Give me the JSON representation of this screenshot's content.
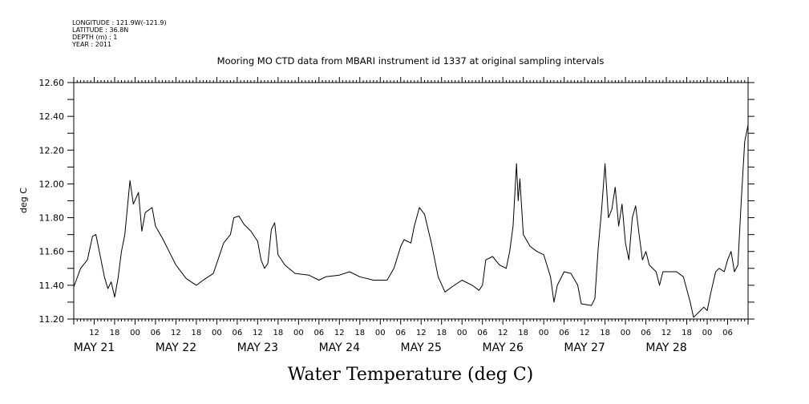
{
  "metadata": {
    "longitude": "LONGITUDE : 121.9W(-121.9)",
    "latitude": "LATITUDE : 36.8N",
    "depth": "DEPTH (m) : 1",
    "year": "YEAR : 2011"
  },
  "chart_data": {
    "type": "line",
    "title": "Mooring MO CTD data from MBARI instrument id 1337 at original sampling intervals",
    "xlabel": "Water Temperature (deg C)",
    "ylabel": "deg C",
    "ylim": [
      11.2,
      12.6
    ],
    "xlim": [
      "2011-05-20T06:00",
      "2011-05-28T12:00"
    ],
    "y_ticks": [
      "11.20",
      "11.40",
      "11.60",
      "11.80",
      "12.00",
      "12.20",
      "12.40",
      "12.60"
    ],
    "hour_ticks": [
      {
        "x": "2011-05-20T12:00",
        "label": "12"
      },
      {
        "x": "2011-05-20T18:00",
        "label": "18"
      },
      {
        "x": "2011-05-21T00:00",
        "label": "00"
      },
      {
        "x": "2011-05-21T06:00",
        "label": "06"
      },
      {
        "x": "2011-05-21T12:00",
        "label": "12"
      },
      {
        "x": "2011-05-21T18:00",
        "label": "18"
      },
      {
        "x": "2011-05-22T00:00",
        "label": "00"
      },
      {
        "x": "2011-05-22T06:00",
        "label": "06"
      },
      {
        "x": "2011-05-22T12:00",
        "label": "12"
      },
      {
        "x": "2011-05-22T18:00",
        "label": "18"
      },
      {
        "x": "2011-05-23T00:00",
        "label": "00"
      },
      {
        "x": "2011-05-23T06:00",
        "label": "06"
      },
      {
        "x": "2011-05-23T12:00",
        "label": "12"
      },
      {
        "x": "2011-05-23T18:00",
        "label": "18"
      },
      {
        "x": "2011-05-24T00:00",
        "label": "00"
      },
      {
        "x": "2011-05-24T06:00",
        "label": "06"
      },
      {
        "x": "2011-05-24T12:00",
        "label": "12"
      },
      {
        "x": "2011-05-24T18:00",
        "label": "18"
      },
      {
        "x": "2011-05-25T00:00",
        "label": "00"
      },
      {
        "x": "2011-05-25T06:00",
        "label": "06"
      },
      {
        "x": "2011-05-25T12:00",
        "label": "12"
      },
      {
        "x": "2011-05-25T18:00",
        "label": "18"
      },
      {
        "x": "2011-05-26T00:00",
        "label": "00"
      },
      {
        "x": "2011-05-26T06:00",
        "label": "06"
      },
      {
        "x": "2011-05-26T12:00",
        "label": "12"
      },
      {
        "x": "2011-05-26T18:00",
        "label": "18"
      },
      {
        "x": "2011-05-27T00:00",
        "label": "00"
      },
      {
        "x": "2011-05-27T06:00",
        "label": "06"
      },
      {
        "x": "2011-05-27T12:00",
        "label": "12"
      },
      {
        "x": "2011-05-27T18:00",
        "label": "18"
      },
      {
        "x": "2011-05-28T00:00",
        "label": "00"
      },
      {
        "x": "2011-05-28T06:00",
        "label": "06"
      }
    ],
    "day_labels": [
      {
        "x": "2011-05-20T12:00",
        "label": "MAY 21"
      },
      {
        "x": "2011-05-21T12:00",
        "label": "MAY 22"
      },
      {
        "x": "2011-05-22T12:00",
        "label": "MAY 23"
      },
      {
        "x": "2011-05-23T12:00",
        "label": "MAY 24"
      },
      {
        "x": "2011-05-24T12:00",
        "label": "MAY 25"
      },
      {
        "x": "2011-05-25T12:00",
        "label": "MAY 26"
      },
      {
        "x": "2011-05-26T12:00",
        "label": "MAY 27"
      },
      {
        "x": "2011-05-27T12:00",
        "label": "MAY 28"
      }
    ],
    "grid": false,
    "series": [
      {
        "points": [
          [
            "2011-05-20T06:00",
            11.39
          ],
          [
            "2011-05-20T08:00",
            11.5
          ],
          [
            "2011-05-20T10:00",
            11.55
          ],
          [
            "2011-05-20T11:30",
            11.69
          ],
          [
            "2011-05-20T12:30",
            11.7
          ],
          [
            "2011-05-20T14:00",
            11.55
          ],
          [
            "2011-05-20T15:00",
            11.45
          ],
          [
            "2011-05-20T16:00",
            11.38
          ],
          [
            "2011-05-20T17:00",
            11.42
          ],
          [
            "2011-05-20T18:00",
            11.33
          ],
          [
            "2011-05-20T19:00",
            11.44
          ],
          [
            "2011-05-20T20:00",
            11.6
          ],
          [
            "2011-05-20T21:00",
            11.7
          ],
          [
            "2011-05-20T22:30",
            12.02
          ],
          [
            "2011-05-20T23:30",
            11.88
          ],
          [
            "2011-05-21T01:00",
            11.95
          ],
          [
            "2011-05-21T02:00",
            11.72
          ],
          [
            "2011-05-21T03:00",
            11.83
          ],
          [
            "2011-05-21T05:00",
            11.86
          ],
          [
            "2011-05-21T06:00",
            11.75
          ],
          [
            "2011-05-21T08:00",
            11.68
          ],
          [
            "2011-05-21T10:00",
            11.6
          ],
          [
            "2011-05-21T12:00",
            11.52
          ],
          [
            "2011-05-21T15:00",
            11.44
          ],
          [
            "2011-05-21T18:00",
            11.4
          ],
          [
            "2011-05-21T20:00",
            11.43
          ],
          [
            "2011-05-21T23:00",
            11.47
          ],
          [
            "2011-05-22T02:00",
            11.65
          ],
          [
            "2011-05-22T04:00",
            11.7
          ],
          [
            "2011-05-22T05:00",
            11.8
          ],
          [
            "2011-05-22T06:30",
            11.81
          ],
          [
            "2011-05-22T08:00",
            11.76
          ],
          [
            "2011-05-22T10:00",
            11.72
          ],
          [
            "2011-05-22T12:00",
            11.66
          ],
          [
            "2011-05-22T13:00",
            11.55
          ],
          [
            "2011-05-22T14:00",
            11.5
          ],
          [
            "2011-05-22T15:00",
            11.53
          ],
          [
            "2011-05-22T16:00",
            11.73
          ],
          [
            "2011-05-22T17:00",
            11.77
          ],
          [
            "2011-05-22T18:00",
            11.58
          ],
          [
            "2011-05-22T20:00",
            11.52
          ],
          [
            "2011-05-22T23:00",
            11.47
          ],
          [
            "2011-05-23T03:00",
            11.46
          ],
          [
            "2011-05-23T06:00",
            11.43
          ],
          [
            "2011-05-23T08:00",
            11.45
          ],
          [
            "2011-05-23T12:00",
            11.46
          ],
          [
            "2011-05-23T15:00",
            11.48
          ],
          [
            "2011-05-23T18:00",
            11.45
          ],
          [
            "2011-05-23T22:00",
            11.43
          ],
          [
            "2011-05-24T02:00",
            11.43
          ],
          [
            "2011-05-24T04:00",
            11.5
          ],
          [
            "2011-05-24T06:00",
            11.63
          ],
          [
            "2011-05-24T07:00",
            11.67
          ],
          [
            "2011-05-24T09:00",
            11.65
          ],
          [
            "2011-05-24T10:00",
            11.75
          ],
          [
            "2011-05-24T11:30",
            11.86
          ],
          [
            "2011-05-24T13:00",
            11.82
          ],
          [
            "2011-05-24T15:00",
            11.65
          ],
          [
            "2011-05-24T17:00",
            11.45
          ],
          [
            "2011-05-24T19:00",
            11.36
          ],
          [
            "2011-05-24T21:00",
            11.39
          ],
          [
            "2011-05-25T00:00",
            11.43
          ],
          [
            "2011-05-25T03:00",
            11.4
          ],
          [
            "2011-05-25T05:00",
            11.37
          ],
          [
            "2011-05-25T06:00",
            11.4
          ],
          [
            "2011-05-25T07:00",
            11.55
          ],
          [
            "2011-05-25T09:00",
            11.57
          ],
          [
            "2011-05-25T11:00",
            11.52
          ],
          [
            "2011-05-25T13:00",
            11.5
          ],
          [
            "2011-05-25T14:00",
            11.6
          ],
          [
            "2011-05-25T15:00",
            11.75
          ],
          [
            "2011-05-25T16:00",
            12.12
          ],
          [
            "2011-05-25T16:30",
            11.9
          ],
          [
            "2011-05-25T17:00",
            12.03
          ],
          [
            "2011-05-25T18:00",
            11.7
          ],
          [
            "2011-05-25T20:00",
            11.63
          ],
          [
            "2011-05-25T22:00",
            11.6
          ],
          [
            "2011-05-26T00:00",
            11.58
          ],
          [
            "2011-05-26T02:00",
            11.45
          ],
          [
            "2011-05-26T03:00",
            11.3
          ],
          [
            "2011-05-26T04:00",
            11.4
          ],
          [
            "2011-05-26T06:00",
            11.48
          ],
          [
            "2011-05-26T08:00",
            11.47
          ],
          [
            "2011-05-26T10:00",
            11.4
          ],
          [
            "2011-05-26T11:00",
            11.29
          ],
          [
            "2011-05-26T14:00",
            11.28
          ],
          [
            "2011-05-26T15:00",
            11.32
          ],
          [
            "2011-05-26T16:00",
            11.62
          ],
          [
            "2011-05-26T17:00",
            11.85
          ],
          [
            "2011-05-26T18:00",
            12.12
          ],
          [
            "2011-05-26T19:00",
            11.8
          ],
          [
            "2011-05-26T20:00",
            11.85
          ],
          [
            "2011-05-26T21:00",
            11.98
          ],
          [
            "2011-05-26T22:00",
            11.75
          ],
          [
            "2011-05-26T23:00",
            11.88
          ],
          [
            "2011-05-27T00:00",
            11.65
          ],
          [
            "2011-05-27T01:00",
            11.55
          ],
          [
            "2011-05-27T02:00",
            11.8
          ],
          [
            "2011-05-27T03:00",
            11.87
          ],
          [
            "2011-05-27T04:00",
            11.7
          ],
          [
            "2011-05-27T05:00",
            11.55
          ],
          [
            "2011-05-27T06:00",
            11.6
          ],
          [
            "2011-05-27T07:00",
            11.52
          ],
          [
            "2011-05-27T09:00",
            11.48
          ],
          [
            "2011-05-27T10:00",
            11.4
          ],
          [
            "2011-05-27T11:00",
            11.48
          ],
          [
            "2011-05-27T12:30",
            11.48
          ],
          [
            "2011-05-27T15:00",
            11.48
          ],
          [
            "2011-05-27T17:00",
            11.45
          ],
          [
            "2011-05-27T19:00",
            11.3
          ],
          [
            "2011-05-27T20:00",
            11.21
          ],
          [
            "2011-05-27T21:00",
            11.23
          ],
          [
            "2011-05-27T22:00",
            11.25
          ],
          [
            "2011-05-27T23:00",
            11.27
          ],
          [
            "2011-05-28T00:00",
            11.25
          ],
          [
            "2011-05-28T01:00",
            11.35
          ],
          [
            "2011-05-28T02:30",
            11.48
          ],
          [
            "2011-05-28T03:30",
            11.5
          ],
          [
            "2011-05-28T05:00",
            11.48
          ],
          [
            "2011-05-28T06:00",
            11.55
          ],
          [
            "2011-05-28T07:00",
            11.6
          ],
          [
            "2011-05-28T08:00",
            11.48
          ],
          [
            "2011-05-28T09:00",
            11.52
          ],
          [
            "2011-05-28T10:00",
            11.9
          ],
          [
            "2011-05-28T11:00",
            12.25
          ],
          [
            "2011-05-28T12:00",
            12.35
          ]
        ]
      }
    ]
  }
}
